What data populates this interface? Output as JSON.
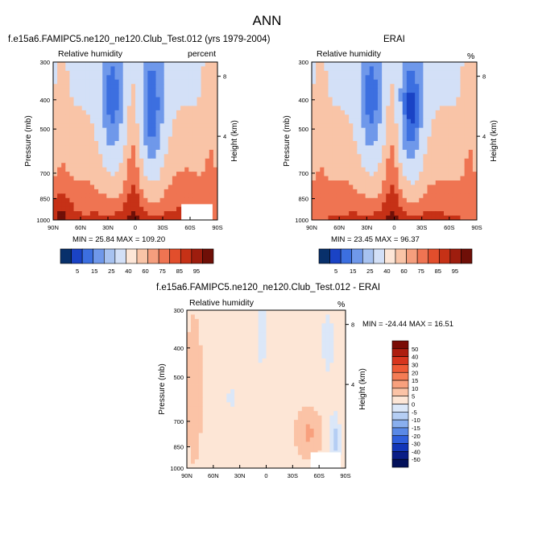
{
  "title": "ANN",
  "palette": {
    "levels": [
      5,
      15,
      25,
      40,
      60,
      75,
      85,
      95
    ],
    "colors": [
      "#08306b",
      "#1a43c5",
      "#3c6fe0",
      "#6f98ea",
      "#a7c2f0",
      "#d3e0f7",
      "#fde6d7",
      "#f9c4a7",
      "#f59e7d",
      "#ef7452",
      "#e24e2c",
      "#c63116",
      "#9e1d0e",
      "#6f0f07"
    ],
    "diff_levels": [
      50,
      40,
      30,
      20,
      15,
      10,
      5,
      0,
      -5,
      -10,
      -15,
      -20,
      -30,
      -40,
      -50
    ],
    "diff_colors": [
      "#7a0c06",
      "#ad1d0f",
      "#d7351e",
      "#ee5a36",
      "#f47c55",
      "#f8a07d",
      "#fbc3a6",
      "#fde6d6",
      "#dbe7f8",
      "#b5cef4",
      "#89afee",
      "#5a89e6",
      "#2f5fdc",
      "#1236b8",
      "#0a1d86",
      "#03105a"
    ]
  },
  "panels": [
    {
      "title": "f.e15a6.FAMIPC5.ne120_ne120.Club_Test.012 (yrs 1979-2004)",
      "left_label": "Relative humidity",
      "right_label": "percent",
      "min_max": "MIN = 25.84  MAX = 109.20"
    },
    {
      "title": "ERAI",
      "left_label": "Relative humidity",
      "right_label": "%",
      "min_max": "MIN = 23.45  MAX = 96.37"
    },
    {
      "title": "f.e15a6.FAMIPC5.ne120_ne120.Club_Test.012 - ERAI",
      "left_label": "Relative humidity",
      "right_label": "%",
      "min_max": "MIN = -24.44  MAX =  16.51"
    }
  ],
  "axes": {
    "ylabel": "Pressure (mb)",
    "y2label": "Height (km)",
    "xticks": [
      "90N",
      "60N",
      "30N",
      "0",
      "30S",
      "60S",
      "90S"
    ],
    "yticks": [
      "300",
      "400",
      "500",
      "700",
      "850",
      "1000"
    ],
    "y2ticks": [
      "8",
      "4"
    ]
  },
  "chart_data": [
    {
      "type": "heatmap",
      "title": "f.e15a6.FAMIPC5.ne120_ne120.Club_Test.012 (yrs 1979-2004)",
      "field": "Relative humidity",
      "units": "percent",
      "x_range": [
        90,
        -90
      ],
      "y_range_mb": [
        1000,
        300
      ],
      "min": 25.84,
      "max": 109.2,
      "contour_levels": [
        5,
        15,
        25,
        40,
        60,
        75,
        85,
        95
      ]
    },
    {
      "type": "heatmap",
      "title": "ERAI",
      "field": "Relative humidity",
      "units": "%",
      "x_range": [
        90,
        -90
      ],
      "y_range_mb": [
        1000,
        300
      ],
      "min": 23.45,
      "max": 96.37,
      "contour_levels": [
        5,
        15,
        25,
        40,
        60,
        75,
        85,
        95
      ]
    },
    {
      "type": "heatmap",
      "title": "f.e15a6.FAMIPC5.ne120_ne120.Club_Test.012 - ERAI",
      "field": "Relative humidity",
      "units": "%",
      "x_range": [
        90,
        -90
      ],
      "y_range_mb": [
        1000,
        300
      ],
      "min": -24.44,
      "max": 16.51,
      "contour_levels": [
        -50,
        -40,
        -30,
        -20,
        -15,
        -10,
        -5,
        0,
        5,
        10,
        15,
        20,
        30,
        40,
        50
      ]
    }
  ]
}
